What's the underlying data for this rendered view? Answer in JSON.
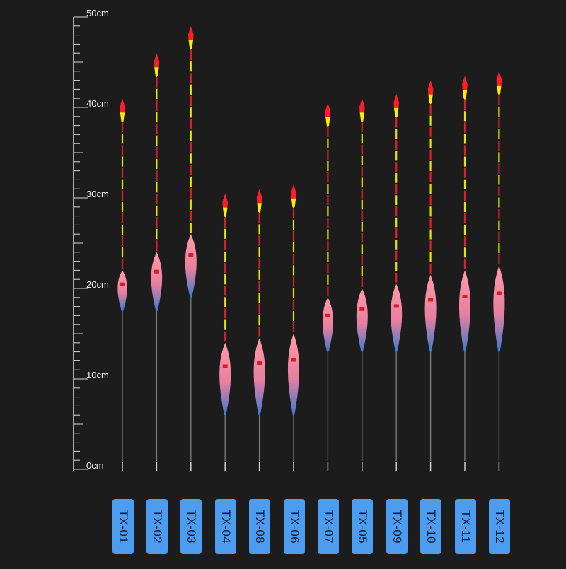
{
  "scale": {
    "unit": "cm",
    "max_cm": 50,
    "labeled_marks": [
      {
        "value": 50,
        "label": "50cm"
      },
      {
        "value": 40,
        "label": "40cm"
      },
      {
        "value": 30,
        "label": "30cm"
      },
      {
        "value": 20,
        "label": "20cm"
      },
      {
        "value": 10,
        "label": "10cm"
      },
      {
        "value": 0,
        "label": "0cm"
      }
    ]
  },
  "colors": {
    "background": "#1c1c1c",
    "ruler": "#d9d9d9",
    "tip_red": "#ff1e26",
    "tip_yellow": "#ffec00",
    "stem_red": "#e0202a",
    "stem_yellow": "#e6e600",
    "body_pink": "#ff9aa6",
    "body_blue": "#3b7bd0",
    "leg_gray": "#808080",
    "tag_blue": "#4c9cf0",
    "tag_text": "#0d1b33"
  },
  "floats": [
    {
      "model": "TX-01",
      "top_cm": 41.0,
      "body_top_cm": 22.0,
      "body_bottom_cm": 17.5,
      "total_cm": 41.0
    },
    {
      "model": "TX-02",
      "top_cm": 46.0,
      "body_top_cm": 24.0,
      "body_bottom_cm": 17.5,
      "total_cm": 46.0
    },
    {
      "model": "TX-03",
      "top_cm": 49.0,
      "body_top_cm": 26.0,
      "body_bottom_cm": 19.0,
      "total_cm": 49.0
    },
    {
      "model": "TX-04",
      "top_cm": 30.5,
      "body_top_cm": 14.0,
      "body_bottom_cm": 6.0,
      "total_cm": 30.5
    },
    {
      "model": "TX-08",
      "top_cm": 31.0,
      "body_top_cm": 14.5,
      "body_bottom_cm": 6.0,
      "total_cm": 31.0
    },
    {
      "model": "TX-06",
      "top_cm": 31.5,
      "body_top_cm": 15.0,
      "body_bottom_cm": 6.0,
      "total_cm": 31.5
    },
    {
      "model": "TX-07",
      "top_cm": 40.5,
      "body_top_cm": 19.0,
      "body_bottom_cm": 13.0,
      "total_cm": 40.5
    },
    {
      "model": "TX-05",
      "top_cm": 41.0,
      "body_top_cm": 20.0,
      "body_bottom_cm": 13.0,
      "total_cm": 41.0
    },
    {
      "model": "TX-09",
      "top_cm": 41.5,
      "body_top_cm": 20.5,
      "body_bottom_cm": 13.0,
      "total_cm": 41.5
    },
    {
      "model": "TX-10",
      "top_cm": 43.0,
      "body_top_cm": 21.5,
      "body_bottom_cm": 13.0,
      "total_cm": 43.0
    },
    {
      "model": "TX-11",
      "top_cm": 43.5,
      "body_top_cm": 22.0,
      "body_bottom_cm": 13.0,
      "total_cm": 43.5
    },
    {
      "model": "TX-12",
      "top_cm": 44.0,
      "body_top_cm": 22.5,
      "body_bottom_cm": 13.0,
      "total_cm": 44.0
    }
  ]
}
